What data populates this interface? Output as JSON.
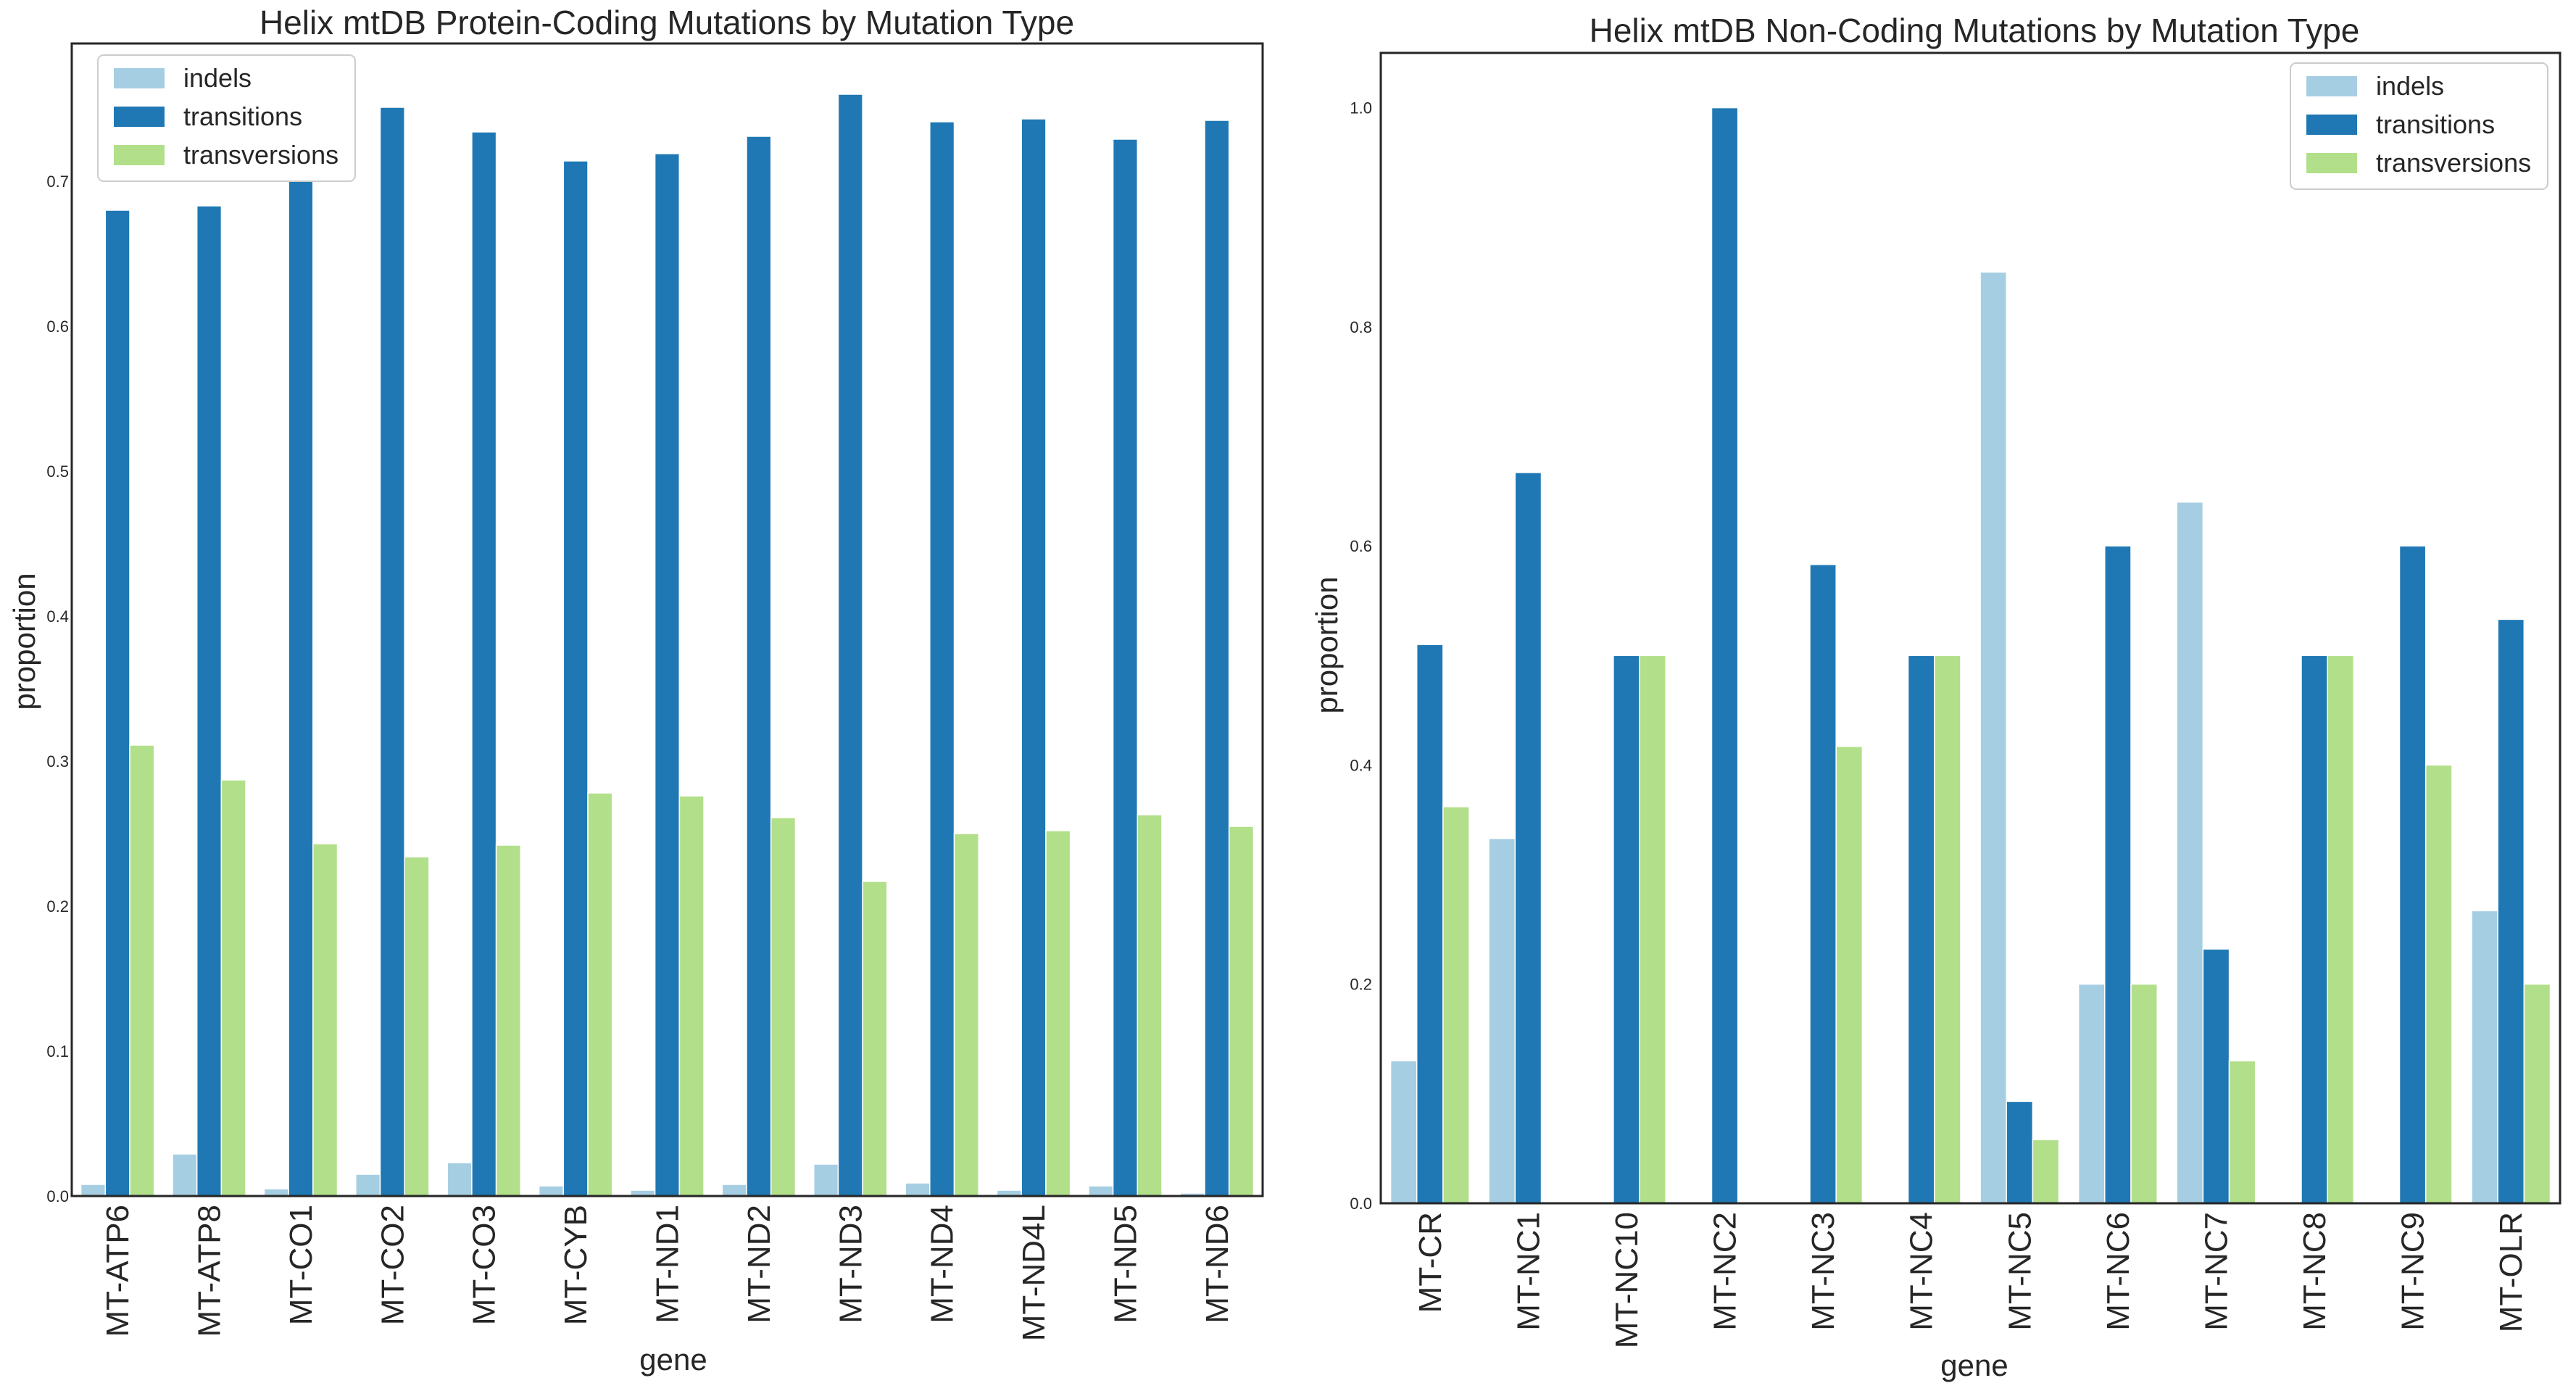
{
  "chart_data": [
    {
      "type": "bar",
      "title": "Helix mtDB Protein-Coding Mutations by Mutation Type",
      "xlabel": "gene",
      "ylabel": "proportion",
      "ylim": [
        0,
        0.795
      ],
      "yticks": [
        "0.0",
        "0.1",
        "0.2",
        "0.3",
        "0.4",
        "0.5",
        "0.6",
        "0.7"
      ],
      "grid": false,
      "legend": "top-left",
      "categories": [
        "MT-ATP6",
        "MT-ATP8",
        "MT-CO1",
        "MT-CO2",
        "MT-CO3",
        "MT-CYB",
        "MT-ND1",
        "MT-ND2",
        "MT-ND3",
        "MT-ND4",
        "MT-ND4L",
        "MT-ND5",
        "MT-ND6"
      ],
      "series": [
        {
          "name": "indels",
          "color": "#a6cee3",
          "values": [
            0.008,
            0.029,
            0.005,
            0.015,
            0.023,
            0.007,
            0.004,
            0.008,
            0.022,
            0.009,
            0.004,
            0.007,
            0.002
          ]
        },
        {
          "name": "transitions",
          "color": "#1f78b4",
          "values": [
            0.68,
            0.683,
            0.751,
            0.751,
            0.734,
            0.714,
            0.719,
            0.731,
            0.76,
            0.741,
            0.743,
            0.729,
            0.742
          ]
        },
        {
          "name": "transversions",
          "color": "#b2df8a",
          "values": [
            0.311,
            0.287,
            0.243,
            0.234,
            0.242,
            0.278,
            0.276,
            0.261,
            0.217,
            0.25,
            0.252,
            0.263,
            0.255
          ]
        }
      ]
    },
    {
      "type": "bar",
      "title": "Helix mtDB Non-Coding Mutations by Mutation Type",
      "xlabel": "gene",
      "ylabel": "proportion",
      "ylim": [
        0,
        1.05
      ],
      "yticks": [
        "0.0",
        "0.2",
        "0.4",
        "0.6",
        "0.8",
        "1.0"
      ],
      "grid": false,
      "legend": "top-right",
      "categories": [
        "MT-CR",
        "MT-NC1",
        "MT-NC10",
        "MT-NC2",
        "MT-NC3",
        "MT-NC4",
        "MT-NC5",
        "MT-NC6",
        "MT-NC7",
        "MT-NC8",
        "MT-NC9",
        "MT-OLR"
      ],
      "series": [
        {
          "name": "indels",
          "color": "#a6cee3",
          "values": [
            0.13,
            0.333,
            0,
            0,
            0,
            0,
            0.85,
            0.2,
            0.64,
            0,
            0,
            0.267
          ]
        },
        {
          "name": "transitions",
          "color": "#1f78b4",
          "values": [
            0.51,
            0.667,
            0.5,
            1.0,
            0.583,
            0.5,
            0.093,
            0.6,
            0.232,
            0.5,
            0.6,
            0.533
          ]
        },
        {
          "name": "transversions",
          "color": "#b2df8a",
          "values": [
            0.362,
            0,
            0.5,
            0,
            0.417,
            0.5,
            0.058,
            0.2,
            0.13,
            0.5,
            0.4,
            0.2
          ]
        }
      ]
    }
  ]
}
